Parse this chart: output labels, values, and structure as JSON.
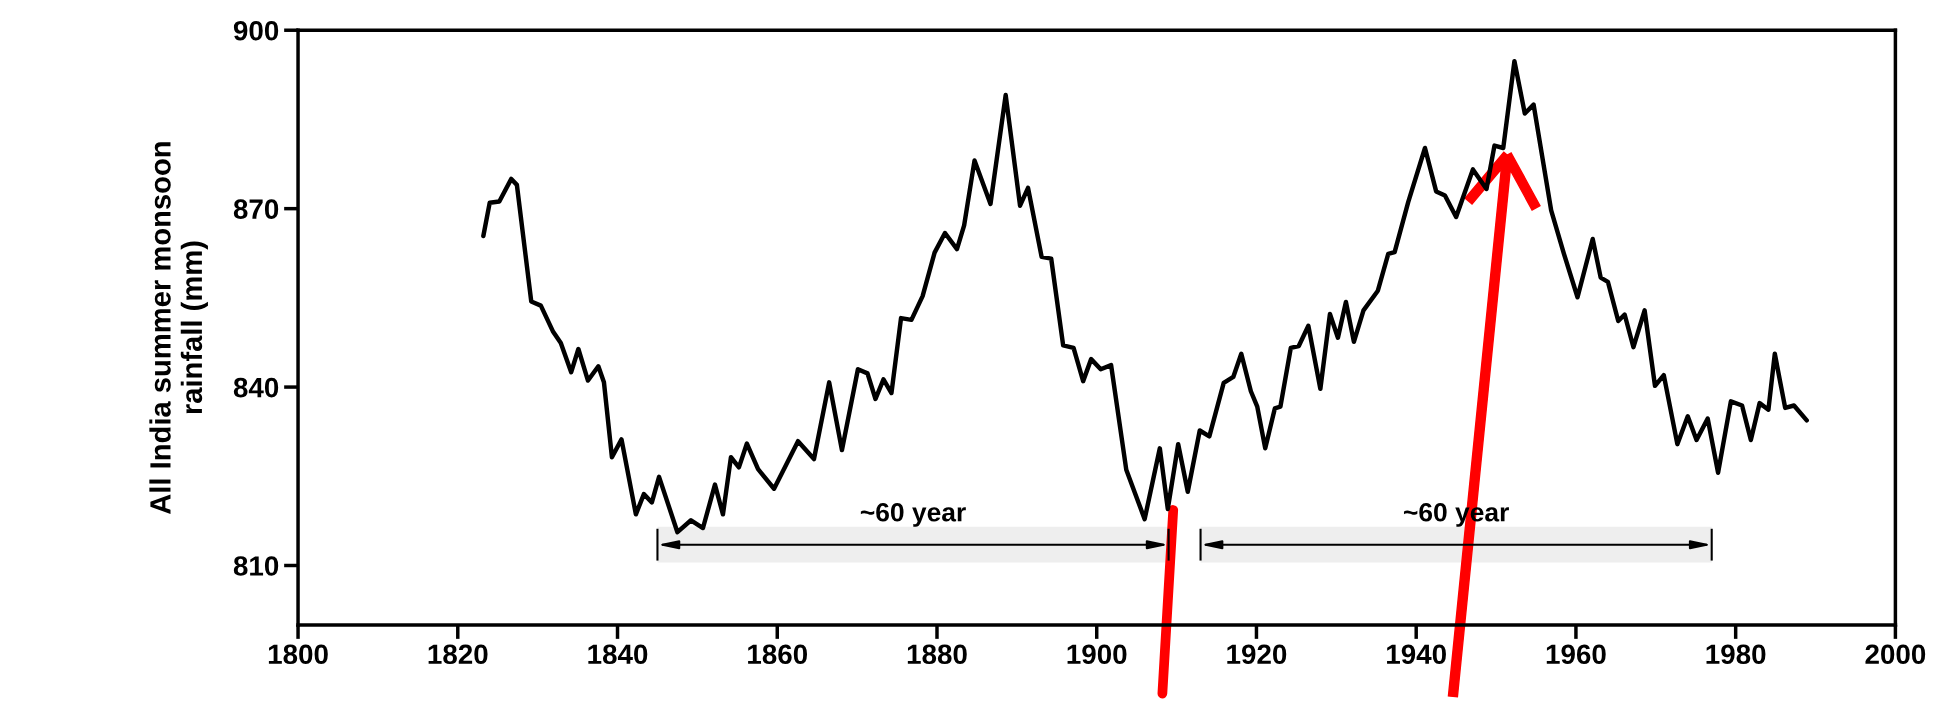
{
  "chart_data": {
    "type": "line",
    "ylabel": "All India summer monsoon\nrainfall (mm)",
    "xlim": [
      1800,
      2000
    ],
    "xticks": [
      1800,
      1820,
      1840,
      1860,
      1880,
      1900,
      1920,
      1940,
      1960,
      1980,
      2000
    ],
    "ylim": [
      800,
      900
    ],
    "yticks": [
      810,
      840,
      870,
      900
    ],
    "grid": false,
    "legend": false,
    "series": [
      {
        "color": "#000000",
        "x": [
          1823.2,
          1824.0,
          1825.2,
          1826.7,
          1827.4,
          1829.2,
          1830.4,
          1831.9,
          1832.9,
          1834.2,
          1835.1,
          1836.3,
          1837.6,
          1838.3,
          1839.3,
          1840.5,
          1842.3,
          1843.3,
          1844.3,
          1845.2,
          1847.5,
          1849.2,
          1850.7,
          1852.2,
          1853.2,
          1854.2,
          1855.2,
          1856.2,
          1857.6,
          1859.6,
          1862.6,
          1864.6,
          1866.5,
          1868.1,
          1870.1,
          1871.3,
          1872.3,
          1873.3,
          1874.3,
          1875.5,
          1876.8,
          1878.2,
          1879.7,
          1881.0,
          1882.5,
          1883.4,
          1884.7,
          1886.7,
          1888.6,
          1890.4,
          1891.4,
          1893.1,
          1894.3,
          1895.8,
          1897.1,
          1898.3,
          1899.3,
          1900.5,
          1901.8,
          1903.7,
          1906.0,
          1907.9,
          1908.9,
          1910.2,
          1911.4,
          1912.9,
          1914.1,
          1915.9,
          1917.1,
          1918.1,
          1919.3,
          1920.1,
          1921.1,
          1922.3,
          1923.0,
          1924.3,
          1925.3,
          1926.5,
          1928.0,
          1929.2,
          1930.2,
          1931.2,
          1932.2,
          1933.4,
          1935.2,
          1936.5,
          1937.3,
          1939.0,
          1941.1,
          1942.5,
          1943.6,
          1945.0,
          1947.1,
          1948.8,
          1949.8,
          1950.9,
          1952.3,
          1953.6,
          1954.7,
          1956.9,
          1958.5,
          1960.2,
          1962.1,
          1963.1,
          1964.0,
          1965.3,
          1966.1,
          1967.2,
          1968.6,
          1969.9,
          1971.0,
          1972.7,
          1974.0,
          1975.1,
          1976.5,
          1977.8,
          1979.4,
          1980.8,
          1981.9,
          1983.0,
          1984.1,
          1984.9,
          1986.2,
          1987.3,
          1988.9
        ],
        "values": [
          865.4,
          871.0,
          871.2,
          875.0,
          874.0,
          854.4,
          853.7,
          849.4,
          847.4,
          842.5,
          846.4,
          841.1,
          843.5,
          840.8,
          828.2,
          831.2,
          818.6,
          822.0,
          820.6,
          824.9,
          815.6,
          817.6,
          816.3,
          823.6,
          818.6,
          828.2,
          826.5,
          830.5,
          826.2,
          822.9,
          830.9,
          827.9,
          840.8,
          829.4,
          843.0,
          842.3,
          838.0,
          841.3,
          839.0,
          851.6,
          851.3,
          855.3,
          862.6,
          865.9,
          863.2,
          867.2,
          878.1,
          870.8,
          889.1,
          870.5,
          873.5,
          861.9,
          861.6,
          847.0,
          846.6,
          841.0,
          844.7,
          843.0,
          843.7,
          826.1,
          817.8,
          829.7,
          819.5,
          830.4,
          822.4,
          832.7,
          831.7,
          840.7,
          841.7,
          845.6,
          839.3,
          836.7,
          829.7,
          836.4,
          836.7,
          846.6,
          846.9,
          850.3,
          839.7,
          852.3,
          848.3,
          854.3,
          847.6,
          852.9,
          856.2,
          862.4,
          862.7,
          871.1,
          880.2,
          872.9,
          872.2,
          868.6,
          876.6,
          873.3,
          880.6,
          880.2,
          894.8,
          886.0,
          887.5,
          869.7,
          862.4,
          855.1,
          864.9,
          858.4,
          857.7,
          851.1,
          852.2,
          846.7,
          852.9,
          840.2,
          842.0,
          830.4,
          835.1,
          831.1,
          834.7,
          825.6,
          837.6,
          836.9,
          831.1,
          837.3,
          836.2,
          845.6,
          836.5,
          836.9,
          834.4
        ]
      }
    ],
    "bands": [
      {
        "axis": "x",
        "from": 1845,
        "to": 1909,
        "label": "~60 year",
        "color": "#eeeeee"
      },
      {
        "axis": "x",
        "from": 1913,
        "to": 1977,
        "label": "~60 year",
        "color": "#eeeeee"
      }
    ]
  }
}
